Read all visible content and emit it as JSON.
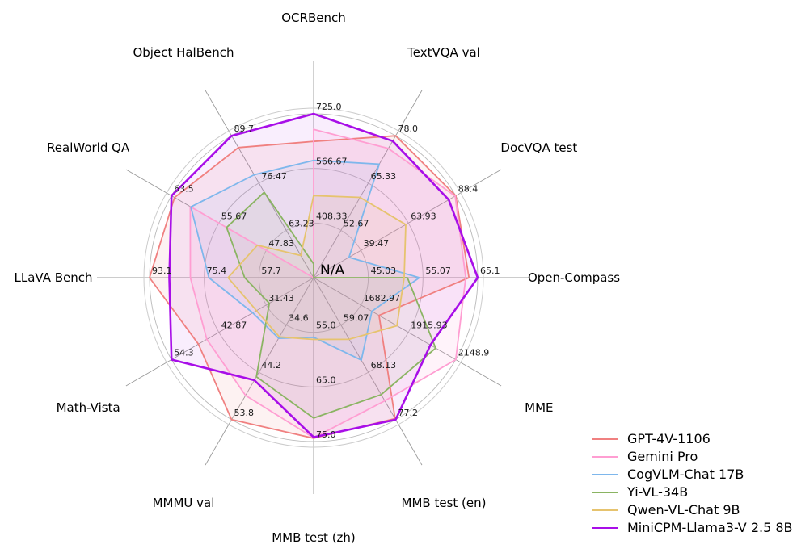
{
  "chart_data": {
    "type": "radar",
    "title": "",
    "center_label": "N/A",
    "grid": true,
    "legend_position": "lower right",
    "colors": {
      "grid_ring": "#b9b9b9",
      "outer_ring": "#cccccc",
      "spoke": "#9a9a9a",
      "tick_text": "#1a1a1a",
      "axis_text": "#000000"
    },
    "axes": [
      {
        "label": "OCRBench",
        "angle_deg": 90,
        "min": 250,
        "max": 725,
        "tick_labels": [
          "408.33",
          "566.67",
          "725.0"
        ]
      },
      {
        "label": "TextVQA val",
        "angle_deg": 60,
        "min": 40,
        "max": 78,
        "tick_labels": [
          "52.67",
          "65.33",
          "78.0"
        ]
      },
      {
        "label": "DocVQA test",
        "angle_deg": 30,
        "min": 15,
        "max": 88.4,
        "tick_labels": [
          "39.47",
          "63.93",
          "88.4"
        ]
      },
      {
        "label": "Open-Compass",
        "angle_deg": 0,
        "min": 35,
        "max": 65.1,
        "tick_labels": [
          "45.03",
          "55.07",
          "65.1"
        ]
      },
      {
        "label": "MME",
        "angle_deg": -30,
        "min": 1450,
        "max": 2148.9,
        "tick_labels": [
          "1682.97",
          "1915.93",
          "2148.9"
        ]
      },
      {
        "label": "MMB test (en)",
        "angle_deg": -60,
        "min": 50,
        "max": 77.2,
        "tick_labels": [
          "59.07",
          "68.13",
          "77.2"
        ]
      },
      {
        "label": "MMB test (zh)",
        "angle_deg": -90,
        "min": 45,
        "max": 75,
        "tick_labels": [
          "55.0",
          "65.0",
          "75.0"
        ]
      },
      {
        "label": "MMMU val",
        "angle_deg": -120,
        "min": 25,
        "max": 53.8,
        "tick_labels": [
          "34.6",
          "44.2",
          "53.8"
        ]
      },
      {
        "label": "Math-Vista",
        "angle_deg": -150,
        "min": 20,
        "max": 54.3,
        "tick_labels": [
          "31.43",
          "42.87",
          "54.3"
        ]
      },
      {
        "label": "LLaVA Bench",
        "angle_deg": 180,
        "min": 40,
        "max": 93.1,
        "tick_labels": [
          "57.7",
          "75.4",
          "93.1"
        ]
      },
      {
        "label": "RealWorld QA",
        "angle_deg": 150,
        "min": 40,
        "max": 63.5,
        "tick_labels": [
          "47.83",
          "55.67",
          "63.5"
        ]
      },
      {
        "label": "Object HalBench",
        "angle_deg": 120,
        "min": 50,
        "max": 89.7,
        "tick_labels": [
          "63.23",
          "76.47",
          "89.7"
        ]
      }
    ],
    "series": [
      {
        "name": "GPT-4V-1106",
        "color": "#f08080",
        "line_width": 1.8,
        "fill_opacity": 0.1,
        "values": [
          645,
          78.0,
          88.4,
          63.5,
          1771.5,
          77.0,
          74.4,
          53.8,
          47.8,
          93.1,
          63.0,
          86.4
        ]
      },
      {
        "name": "Gemini Pro",
        "color": "#ff9ed2",
        "line_width": 1.8,
        "fill_opacity": 0.12,
        "values": [
          680,
          74.6,
          88.1,
          62.9,
          2148.9,
          73.6,
          74.3,
          48.9,
          45.8,
          79.9,
          60.4,
          null
        ]
      },
      {
        "name": "CogVLM-Chat 17B",
        "color": "#7eb7ec",
        "line_width": 1.8,
        "fill_opacity": 0.1,
        "values": [
          590,
          70.4,
          33.3,
          54.4,
          1736.6,
          65.8,
          55.9,
          37.3,
          34.7,
          73.9,
          60.3,
          78.8
        ]
      },
      {
        "name": "Yi-VL-34B",
        "color": "#8ab462",
        "line_width": 1.8,
        "fill_opacity": 0.08,
        "values": [
          290,
          null,
          null,
          52.2,
          2050.2,
          72.4,
          70.7,
          45.1,
          30.7,
          62.3,
          54.4,
          73.9
        ]
      },
      {
        "name": "Qwen-VL-Chat 9B",
        "color": "#e6c36e",
        "line_width": 1.8,
        "fill_opacity": 0.1,
        "values": [
          488,
          61.5,
          62.6,
          51.6,
          1860.0,
          61.8,
          56.3,
          37.0,
          33.8,
          67.7,
          49.3,
          56.2
        ]
      },
      {
        "name": "MiniCPM-Llama3-V 2.5 8B",
        "color": "#a80ee8",
        "line_width": 2.6,
        "fill_opacity": 0.07,
        "values": [
          725,
          76.6,
          84.8,
          65.1,
          2024.6,
          77.2,
          74.2,
          45.8,
          54.3,
          86.7,
          63.5,
          89.7
        ]
      }
    ]
  }
}
